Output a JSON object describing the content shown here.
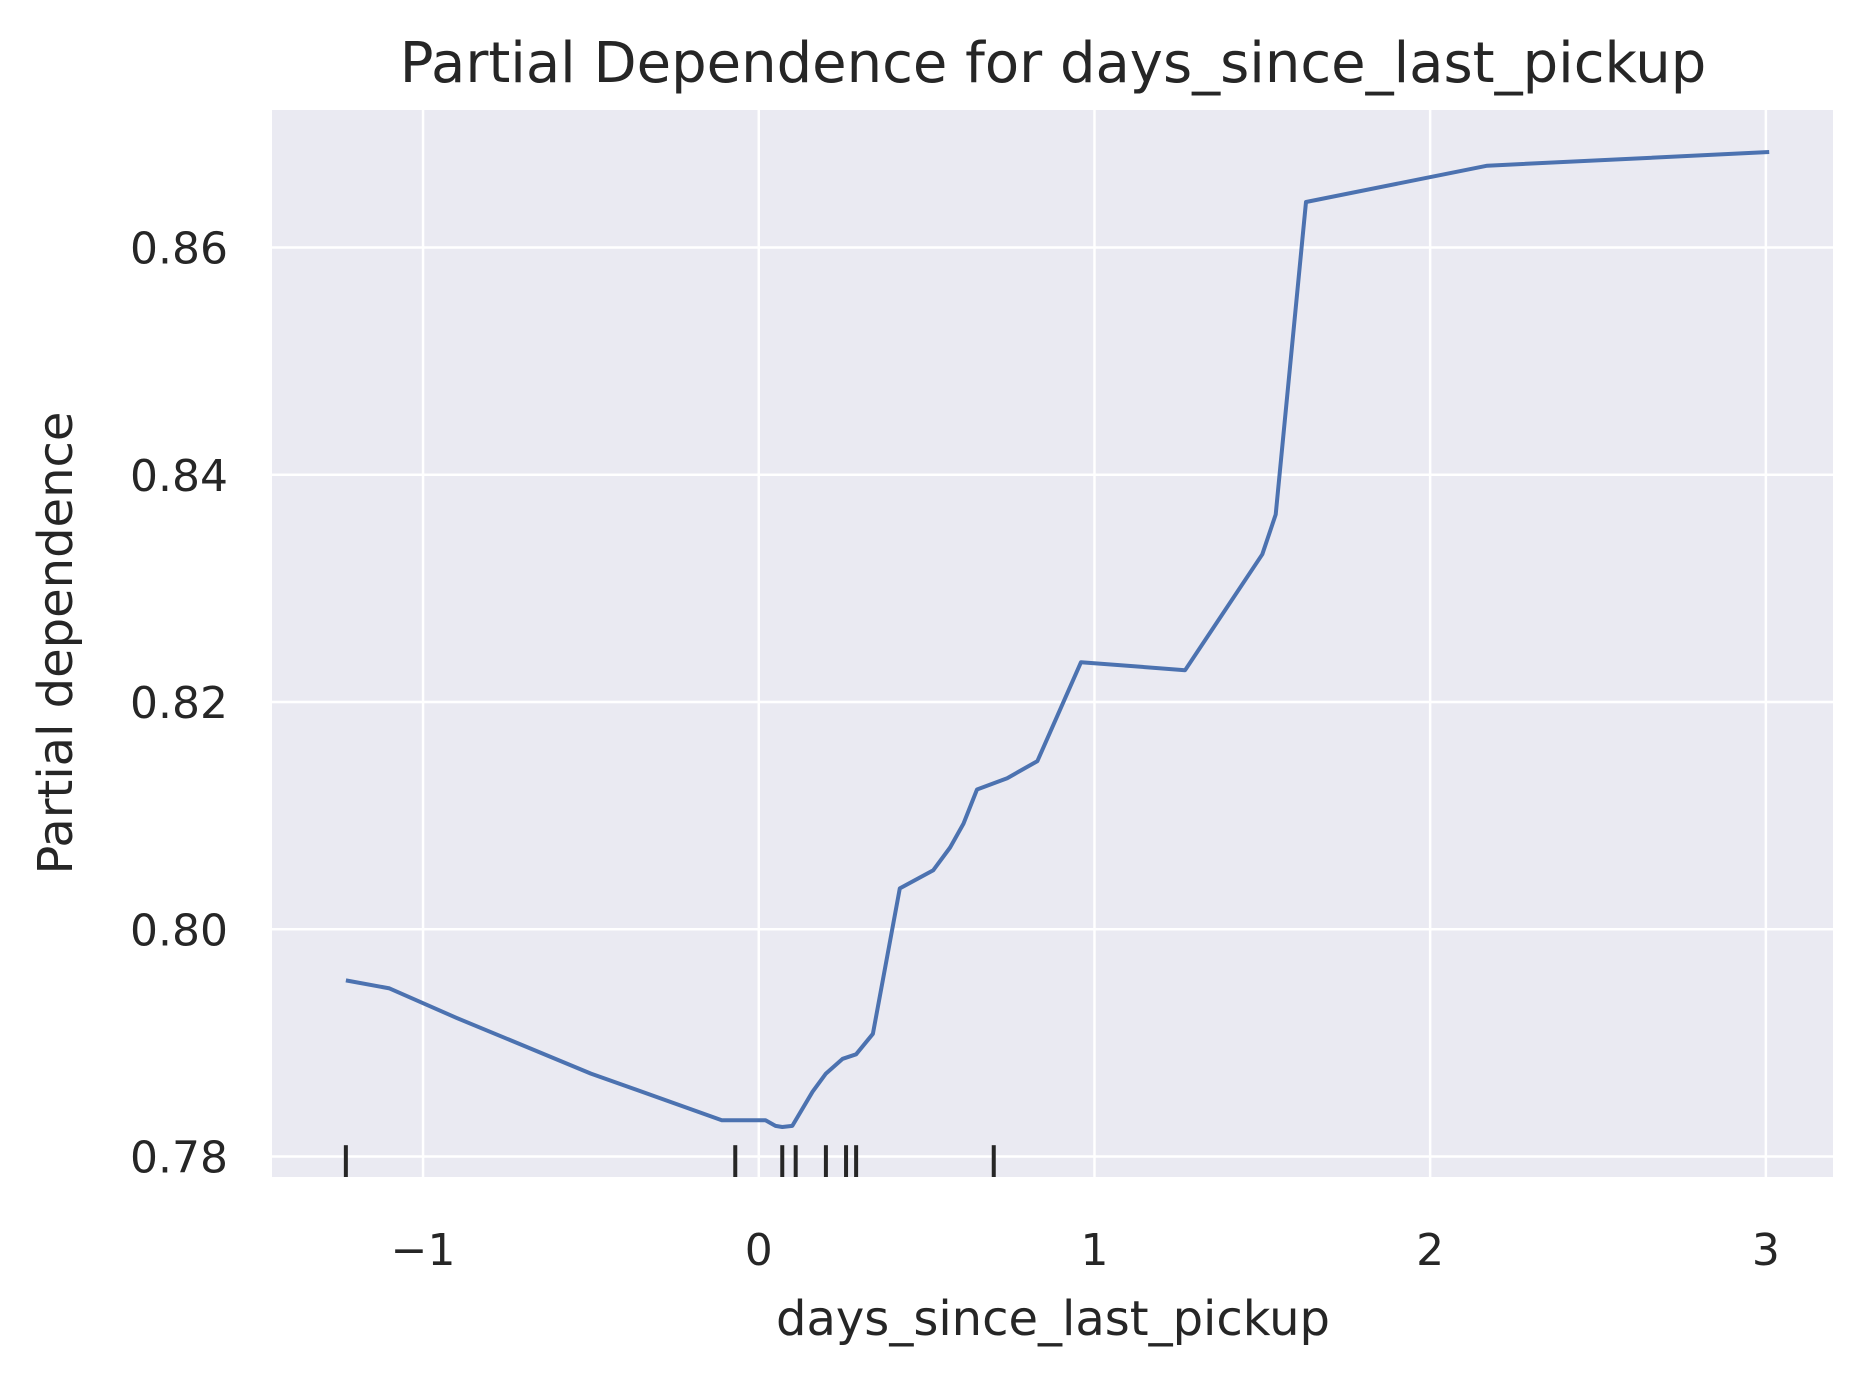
{
  "chart_data": {
    "type": "line",
    "title": "Partial Dependence for days_since_last_pickup",
    "xlabel": "days_since_last_pickup",
    "ylabel": "Partial dependence",
    "xlim": [
      -1.45,
      3.2
    ],
    "ylim": [
      0.7782,
      0.8721
    ],
    "xticks": [
      -1,
      0,
      1,
      2,
      3
    ],
    "xtick_labels": [
      "−1",
      "0",
      "1",
      "2",
      "3"
    ],
    "yticks": [
      0.78,
      0.8,
      0.82,
      0.84,
      0.86
    ],
    "ytick_labels": [
      "0.78",
      "0.80",
      "0.82",
      "0.84",
      "0.86"
    ],
    "grid": true,
    "colors": {
      "background": "#eaeaf2",
      "grid": "#ffffff",
      "line": "#4c72b0",
      "rug": "#262626"
    },
    "series": [
      {
        "x": [
          -1.23,
          -1.1,
          -0.9,
          -0.5,
          -0.11,
          0.02,
          0.05,
          0.07,
          0.1,
          0.16,
          0.2,
          0.25,
          0.29,
          0.34,
          0.42,
          0.52,
          0.57,
          0.61,
          0.65,
          0.74,
          0.83,
          0.96,
          1.27,
          1.5,
          1.54,
          1.63,
          2.17,
          3.01
        ],
        "y": [
          0.7955,
          0.7948,
          0.7922,
          0.7873,
          0.7832,
          0.7832,
          0.7827,
          0.7826,
          0.7827,
          0.7857,
          0.7873,
          0.7886,
          0.789,
          0.7908,
          0.8036,
          0.8052,
          0.8072,
          0.8093,
          0.8123,
          0.8133,
          0.8148,
          0.8235,
          0.8228,
          0.833,
          0.8365,
          0.864,
          0.8672,
          0.8684
        ]
      }
    ],
    "rug": [
      -1.23,
      -0.07,
      0.07,
      0.11,
      0.2,
      0.26,
      0.29,
      0.7
    ]
  }
}
